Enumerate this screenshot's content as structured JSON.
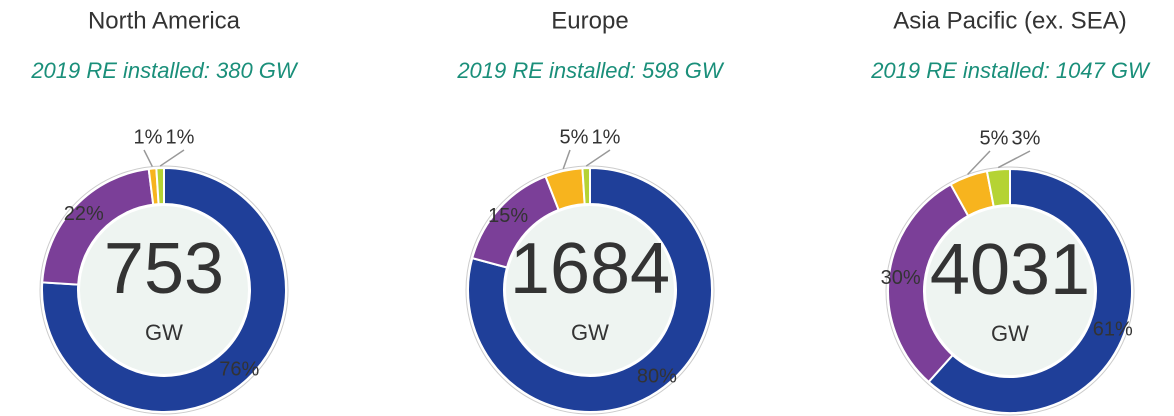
{
  "chart_data": [
    {
      "type": "donut",
      "title": "North America",
      "subtitle": "2019 RE installed: 380 GW",
      "center_value": "753",
      "center_unit": "GW",
      "categories": [
        null,
        null,
        null,
        null
      ],
      "values": [
        76,
        22,
        1,
        1
      ],
      "value_labels": [
        "76%",
        "22%",
        "1%",
        "1%"
      ],
      "colors": [
        "#1f3f99",
        "#7b3f98",
        "#f7b41e",
        "#b5d334"
      ]
    },
    {
      "type": "donut",
      "title": "Europe",
      "subtitle": "2019 RE installed: 598 GW",
      "center_value": "1684",
      "center_unit": "GW",
      "categories": [
        null,
        null,
        null,
        null
      ],
      "values": [
        80,
        15,
        5,
        1
      ],
      "value_labels": [
        "80%",
        "15%",
        "5%",
        "1%"
      ],
      "colors": [
        "#1f3f99",
        "#7b3f98",
        "#f7b41e",
        "#b5d334"
      ]
    },
    {
      "type": "donut",
      "title": "Asia Pacific (ex. SEA)",
      "subtitle": "2019 RE installed: 1047 GW",
      "center_value": "4031",
      "center_unit": "GW",
      "categories": [
        null,
        null,
        null,
        null
      ],
      "values": [
        61,
        30,
        5,
        3
      ],
      "value_labels": [
        "61%",
        "30%",
        "5%",
        "3%"
      ],
      "colors": [
        "#1f3f99",
        "#7b3f98",
        "#f7b41e",
        "#b5d334"
      ]
    }
  ]
}
